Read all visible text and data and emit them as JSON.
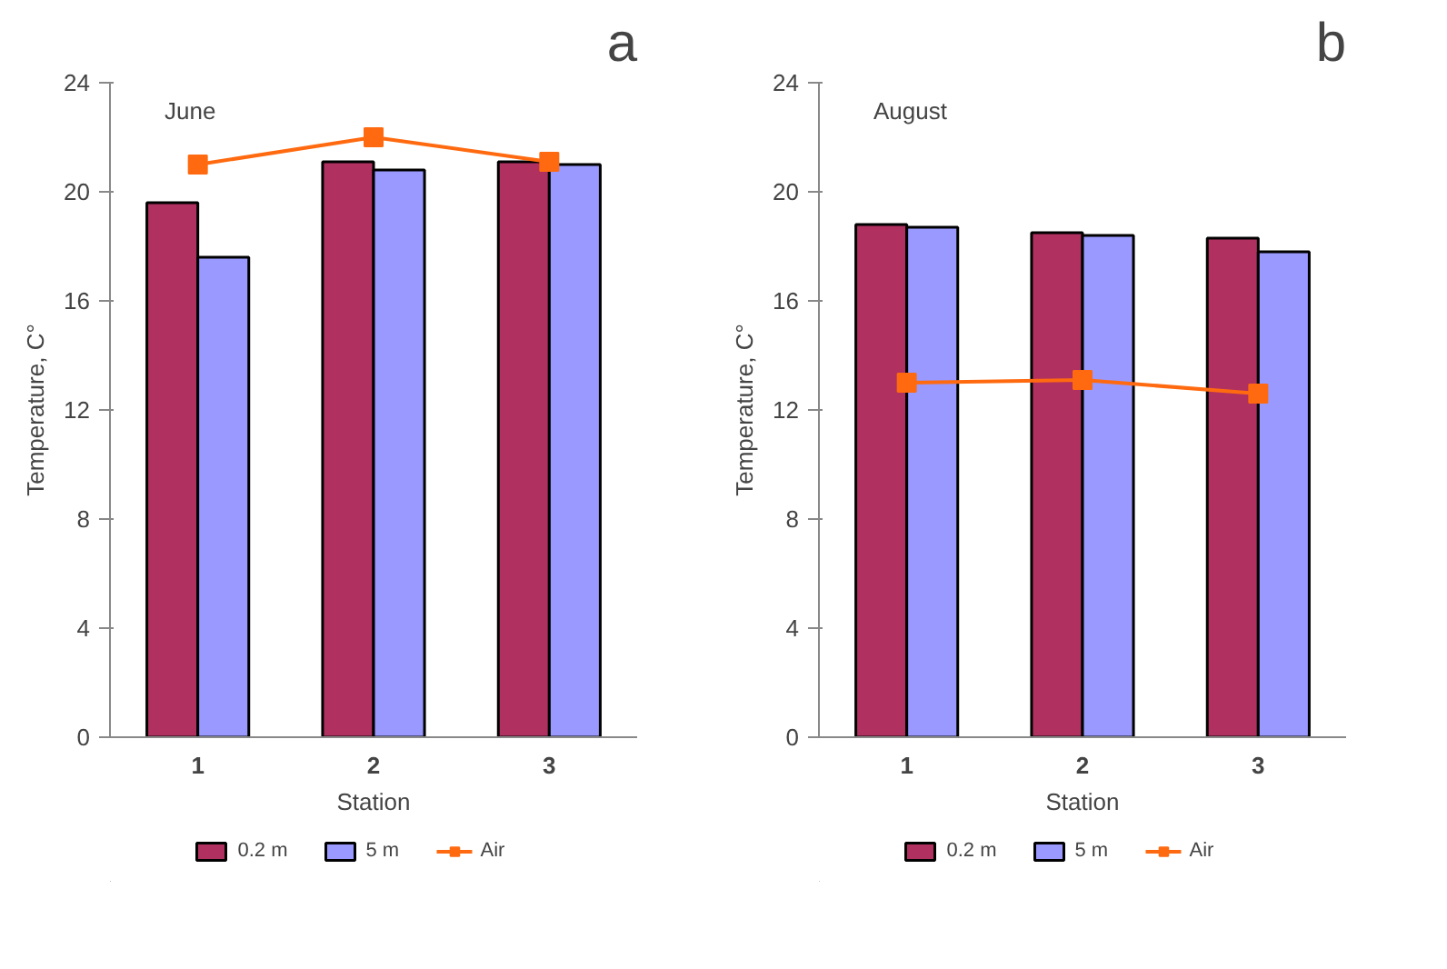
{
  "chart_data": [
    {
      "type": "bar",
      "categories": [
        "1",
        "2",
        "3"
      ],
      "xlabel": "Station",
      "ylabel": "Temperature, C°",
      "ylim": [
        0,
        24
      ],
      "yticks": [
        0,
        4,
        8,
        12,
        16,
        20,
        24
      ],
      "grid": false,
      "legend": "bottom",
      "annotations": [
        "a",
        "June"
      ],
      "series": [
        {
          "name": "0.2 m",
          "color": "#b03060",
          "values": [
            19.6,
            21.1,
            21.1
          ]
        },
        {
          "name": "5 m",
          "color": "#9999ff",
          "values": [
            17.6,
            20.8,
            21.0
          ]
        },
        {
          "name": "Air",
          "type": "line",
          "marker": "square",
          "color": "#ff6a10",
          "values": [
            21.0,
            22.0,
            21.1
          ]
        }
      ]
    },
    {
      "type": "bar",
      "categories": [
        "1",
        "2",
        "3"
      ],
      "xlabel": "Station",
      "ylabel": "Temperature, C°",
      "ylim": [
        0,
        24
      ],
      "yticks": [
        0,
        4,
        8,
        12,
        16,
        20,
        24
      ],
      "grid": false,
      "legend": "bottom",
      "annotations": [
        "b",
        "August"
      ],
      "series": [
        {
          "name": "0.2 m",
          "color": "#b03060",
          "values": [
            18.8,
            18.5,
            18.3
          ]
        },
        {
          "name": "5 m",
          "color": "#9999ff",
          "values": [
            18.7,
            18.4,
            17.8
          ]
        },
        {
          "name": "Air",
          "type": "line",
          "marker": "square",
          "color": "#ff6a10",
          "values": [
            13.0,
            13.1,
            12.6
          ]
        }
      ]
    }
  ]
}
